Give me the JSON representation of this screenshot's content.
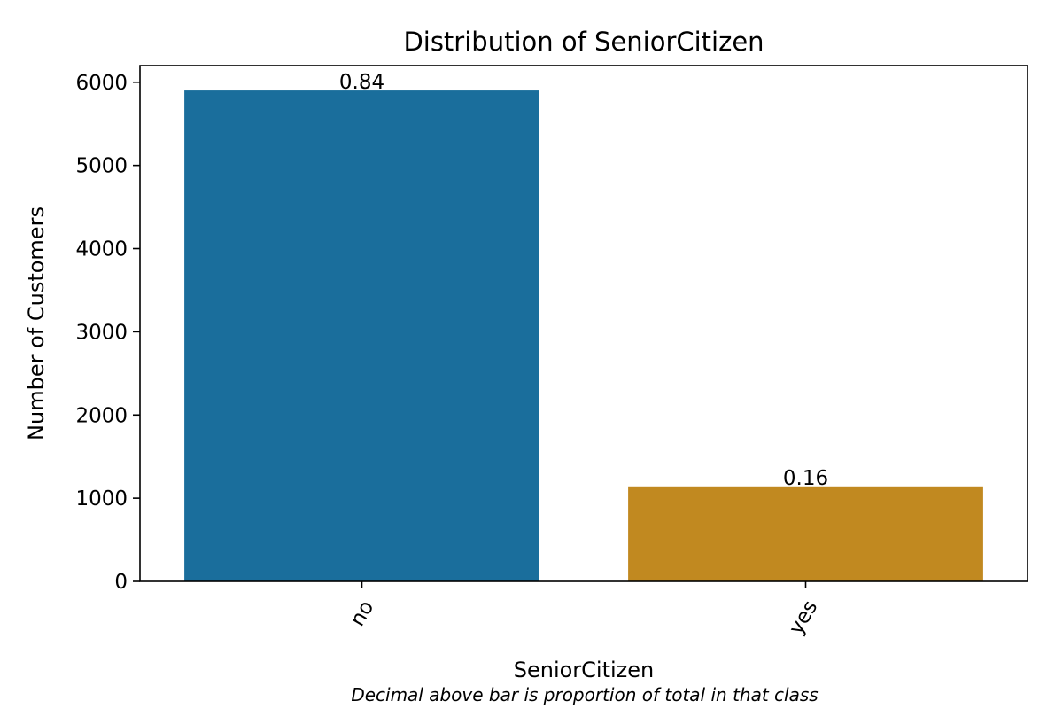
{
  "chart_data": {
    "type": "bar",
    "title": "Distribution of SeniorCitizen",
    "xlabel": "SeniorCitizen",
    "ylabel": "Number of Customers",
    "caption": "Decimal above bar is proportion of total in that class",
    "categories": [
      "no",
      "yes"
    ],
    "values": [
      5901,
      1142
    ],
    "data_labels": [
      "0.84",
      "0.16"
    ],
    "bar_colors": [
      "#1a6e9c",
      "#c18920"
    ],
    "ylim": [
      0,
      6200
    ],
    "yticks": [
      0,
      1000,
      2000,
      3000,
      4000,
      5000,
      6000
    ],
    "ytick_labels": [
      "0",
      "1000",
      "2000",
      "3000",
      "4000",
      "5000",
      "6000"
    ],
    "xtick_rotation_deg": -60,
    "grid": false,
    "legend": "none"
  }
}
